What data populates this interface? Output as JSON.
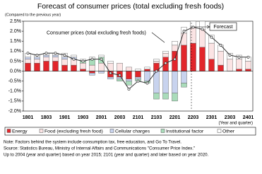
{
  "chart_data": {
    "type": "stacked-bar-line",
    "title": "Forecast of consumer prices (total excluding fresh foods)",
    "y_axis_label": "(Compared to the previous year)",
    "x_axis_label": "(Year and quarter)",
    "forecast_label": "Forecast",
    "categories": [
      "1801",
      null,
      "1803",
      null,
      "1901",
      null,
      "1903",
      null,
      "2001",
      null,
      "2003",
      null,
      "2101",
      null,
      "2103",
      null,
      "2201",
      null,
      "2203",
      null,
      "2301",
      null,
      "2303",
      null,
      "2401"
    ],
    "series": [
      {
        "name": "Energy",
        "color": "#e2262b",
        "values": [
          0.4,
          0.4,
          0.5,
          0.5,
          0.3,
          0.3,
          0.1,
          -0.1,
          0.0,
          -0.3,
          -0.3,
          -0.4,
          -0.3,
          0.1,
          0.4,
          0.7,
          1.0,
          1.3,
          1.4,
          1.2,
          0.6,
          0.3,
          0.0,
          0.1,
          0.1
        ]
      },
      {
        "name": "Food (excluding fresh food)",
        "color": "#fbe4e4",
        "values": [
          0.2,
          0.2,
          0.2,
          0.2,
          0.3,
          0.3,
          0.3,
          0.3,
          0.4,
          0.4,
          0.4,
          0.2,
          0.0,
          0.0,
          0.1,
          0.2,
          0.3,
          0.6,
          0.8,
          0.9,
          0.8,
          0.7,
          0.6,
          0.5,
          0.4
        ]
      },
      {
        "name": "Cellular charges",
        "color": "#c8d3ee",
        "values": [
          0.1,
          0.1,
          0.1,
          0.1,
          0.1,
          0.1,
          0.0,
          -0.1,
          -0.1,
          -0.1,
          -0.1,
          -0.1,
          -0.1,
          -0.5,
          -1.1,
          -1.1,
          -1.1,
          -0.6,
          0.0,
          0.0,
          0.0,
          0.0,
          0.0,
          0.0,
          0.0
        ]
      },
      {
        "name": "Institutional factor",
        "color": "#a9dcba",
        "values": [
          0.0,
          0.0,
          0.0,
          0.0,
          0.0,
          0.0,
          0.1,
          0.3,
          0.3,
          0.0,
          -0.1,
          -0.2,
          -0.1,
          -0.1,
          -0.3,
          -0.3,
          -0.4,
          -0.2,
          0.0,
          0.0,
          0.0,
          0.0,
          0.0,
          0.0,
          0.0
        ]
      },
      {
        "name": "Other",
        "color": "#ffffff",
        "values": [
          0.2,
          0.1,
          0.1,
          0.1,
          0.2,
          0.1,
          0.1,
          0.1,
          0.1,
          0.1,
          0.0,
          0.0,
          0.1,
          0.1,
          0.1,
          0.1,
          0.2,
          0.3,
          0.3,
          0.4,
          0.4,
          0.3,
          0.3,
          0.2,
          0.2
        ]
      }
    ],
    "line": {
      "name": "Consumer prices (total excluding fresh foods)",
      "color": "#333333",
      "values": [
        0.9,
        0.8,
        0.9,
        0.9,
        0.8,
        0.6,
        0.5,
        0.6,
        0.6,
        -0.1,
        -0.2,
        -0.9,
        -0.5,
        -0.6,
        0.0,
        0.4,
        0.6,
        2.0,
        2.2,
        2.1,
        1.7,
        1.3,
        0.8,
        0.7,
        0.7
      ]
    },
    "ylim": [
      -2.0,
      2.5
    ],
    "yticks": [
      {
        "value": -2.0,
        "label": "-2.0%"
      },
      {
        "value": -1.5,
        "label": "-1.5%"
      },
      {
        "value": -1.0,
        "label": "-1.0%"
      },
      {
        "value": -0.5,
        "label": "-0.5%"
      },
      {
        "value": 0.0,
        "label": "0.0%"
      },
      {
        "value": 0.5,
        "label": "0.5%"
      },
      {
        "value": 1.0,
        "label": "1.0%"
      },
      {
        "value": 1.5,
        "label": "1.5%"
      },
      {
        "value": 2.0,
        "label": "2.0%"
      },
      {
        "value": 2.5,
        "label": "2.5%"
      }
    ],
    "grid": false,
    "legend": "bottom",
    "notes": [
      "Note: Factors behind the system include consumption tax, free education, and Go To Travel.",
      "Source: Statistics Bureau, Ministry of Internal Affairs and Communications \"Consumer Price Index.\"",
      "Up to 2004 (year and quarter) based on year 2015; 2101 (year and quarter) and later based on year 2020."
    ]
  }
}
